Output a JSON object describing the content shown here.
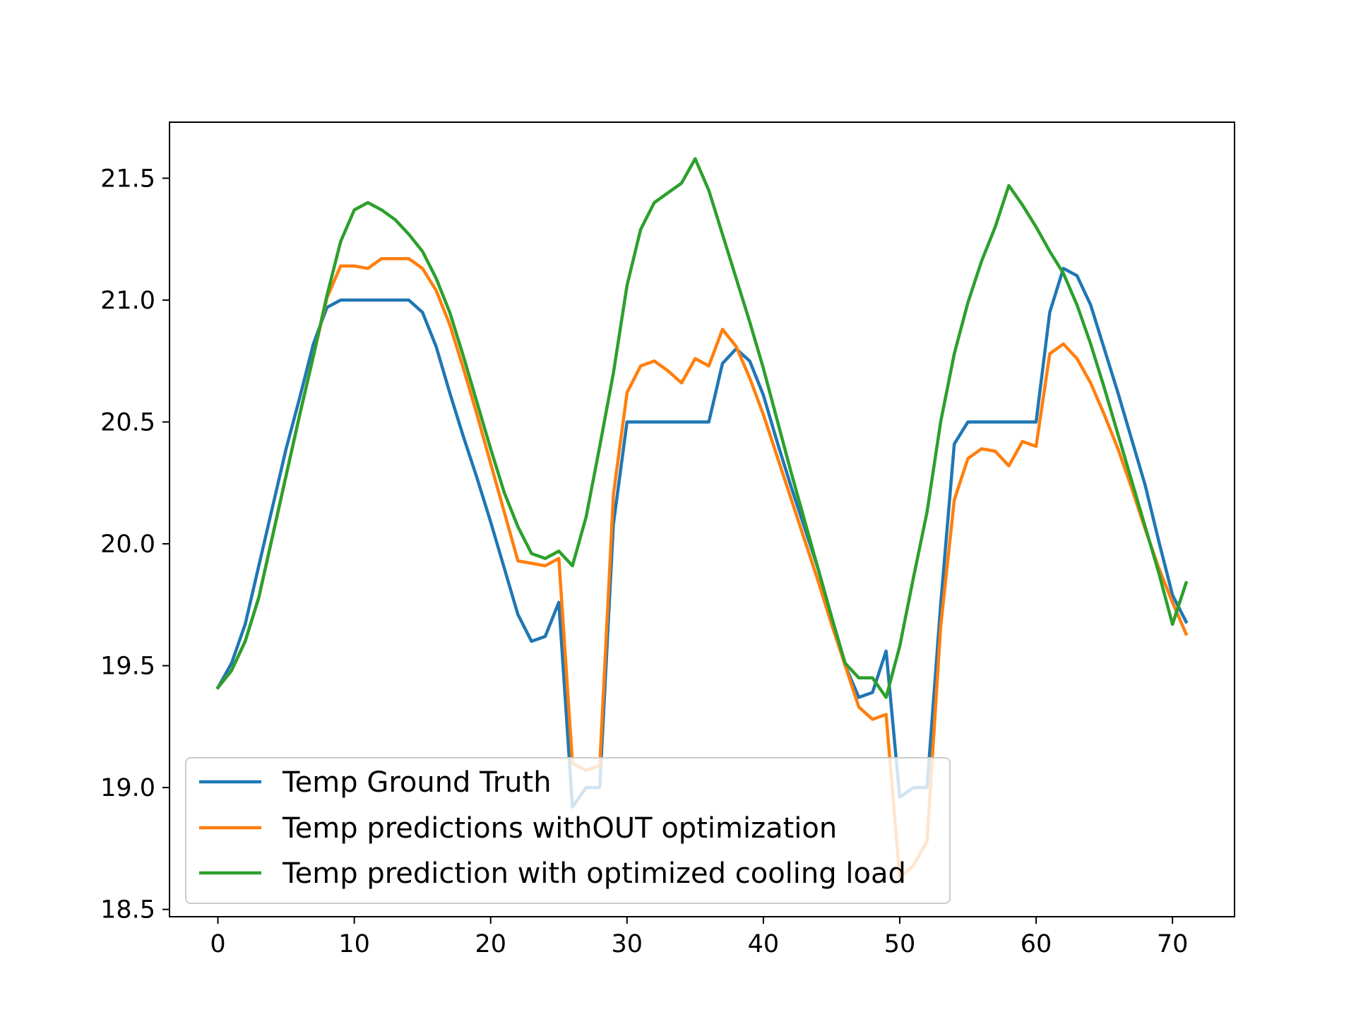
{
  "chart_data": {
    "type": "line",
    "title": "",
    "xlabel": "",
    "ylabel": "",
    "xlim": [
      -3.55,
      74.55
    ],
    "ylim": [
      18.47,
      21.73
    ],
    "xticks": [
      0,
      10,
      20,
      30,
      40,
      50,
      60,
      70
    ],
    "yticks": [
      18.5,
      19.0,
      19.5,
      20.0,
      20.5,
      21.0,
      21.5
    ],
    "xtick_labels": [
      "0",
      "10",
      "20",
      "30",
      "40",
      "50",
      "60",
      "70"
    ],
    "ytick_labels": [
      "18.5",
      "19.0",
      "19.5",
      "20.0",
      "20.5",
      "21.0",
      "21.5"
    ],
    "grid": false,
    "legend_position": "lower-left",
    "series": [
      {
        "name": "Temp Ground Truth",
        "color": "#1f77b4",
        "values": [
          19.41,
          19.51,
          19.67,
          19.91,
          20.15,
          20.39,
          20.6,
          20.82,
          20.97,
          21.0,
          21.0,
          21.0,
          21.0,
          21.0,
          21.0,
          20.95,
          20.81,
          20.62,
          20.44,
          20.27,
          20.09,
          19.9,
          19.71,
          19.6,
          19.62,
          19.76,
          18.92,
          19.0,
          19.0,
          20.08,
          20.5,
          20.5,
          20.5,
          20.5,
          20.5,
          20.5,
          20.5,
          20.74,
          20.8,
          20.75,
          20.61,
          20.42,
          20.24,
          20.07,
          19.9,
          19.7,
          19.5,
          19.37,
          19.39,
          19.56,
          18.96,
          19.0,
          19.0,
          19.75,
          20.41,
          20.5,
          20.5,
          20.5,
          20.5,
          20.5,
          20.5,
          20.95,
          21.13,
          21.1,
          20.98,
          20.8,
          20.62,
          20.43,
          20.24,
          20.01,
          19.79,
          19.68
        ]
      },
      {
        "name": "Temp predictions withOUT optimization",
        "color": "#ff7f0e",
        "values": [
          19.41,
          19.48,
          19.6,
          19.78,
          20.03,
          20.28,
          20.53,
          20.77,
          21.01,
          21.14,
          21.14,
          21.13,
          21.17,
          21.17,
          21.17,
          21.13,
          21.04,
          20.9,
          20.72,
          20.53,
          20.33,
          20.13,
          19.93,
          19.92,
          19.91,
          19.94,
          19.1,
          19.07,
          19.09,
          20.2,
          20.62,
          20.73,
          20.75,
          20.71,
          20.66,
          20.76,
          20.73,
          20.88,
          20.81,
          20.68,
          20.53,
          20.36,
          20.19,
          20.02,
          19.85,
          19.67,
          19.5,
          19.33,
          19.28,
          19.3,
          18.63,
          18.68,
          18.78,
          19.66,
          20.18,
          20.35,
          20.39,
          20.38,
          20.32,
          20.42,
          20.4,
          20.78,
          20.82,
          20.76,
          20.66,
          20.53,
          20.39,
          20.23,
          20.06,
          19.9,
          19.76,
          19.63
        ]
      },
      {
        "name": "Temp prediction with optimized cooling load",
        "color": "#2ca02c",
        "values": [
          19.41,
          19.48,
          19.6,
          19.78,
          20.03,
          20.28,
          20.53,
          20.77,
          21.02,
          21.24,
          21.37,
          21.4,
          21.37,
          21.33,
          21.27,
          21.2,
          21.09,
          20.95,
          20.77,
          20.58,
          20.39,
          20.21,
          20.07,
          19.96,
          19.94,
          19.97,
          19.91,
          20.11,
          20.4,
          20.7,
          21.06,
          21.29,
          21.4,
          21.44,
          21.48,
          21.58,
          21.45,
          21.27,
          21.09,
          20.91,
          20.72,
          20.51,
          20.3,
          20.1,
          19.9,
          19.7,
          19.51,
          19.45,
          19.45,
          19.37,
          19.58,
          19.86,
          20.13,
          20.5,
          20.78,
          20.99,
          21.16,
          21.3,
          21.47,
          21.39,
          21.3,
          21.2,
          21.11,
          20.98,
          20.82,
          20.64,
          20.45,
          20.26,
          20.07,
          19.88,
          19.67,
          19.84
        ]
      }
    ]
  }
}
